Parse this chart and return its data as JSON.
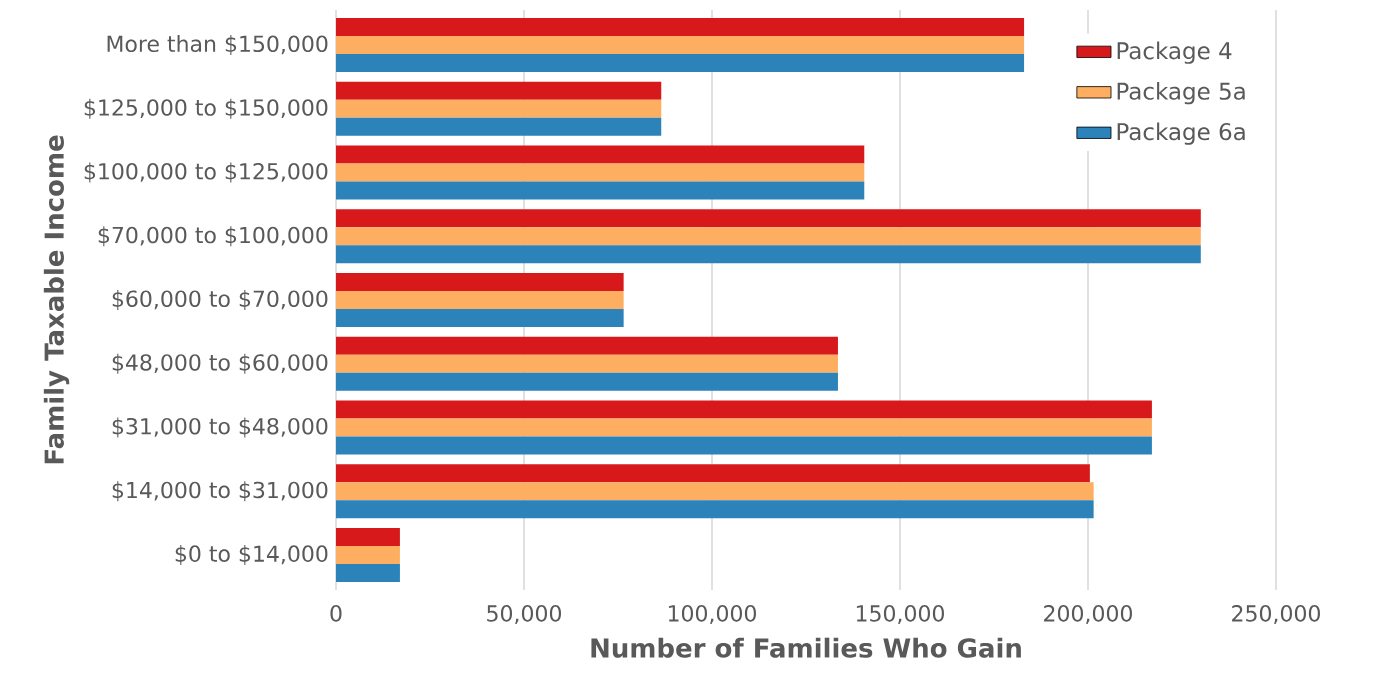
{
  "chart_data": {
    "type": "bar",
    "orientation": "horizontal",
    "xlabel": "Number of Families Who Gain",
    "ylabel": "Family Taxable Income",
    "categories": [
      "More than $150,000",
      "$125,000 to $150,000",
      "$100,000 to $125,000",
      "$70,000 to $100,000",
      "$60,000 to $70,000",
      "$48,000 to $60,000",
      "$31,000 to $48,000",
      "$14,000 to $31,000",
      "$0 to $14,000"
    ],
    "series": [
      {
        "name": "Package 4",
        "color": "#d7191c",
        "values": [
          183000,
          86500,
          140500,
          230000,
          76500,
          133500,
          217000,
          200500,
          17000
        ]
      },
      {
        "name": "Package 5a",
        "color": "#fdae61",
        "values": [
          183000,
          86500,
          140500,
          230000,
          76500,
          133500,
          217000,
          201500,
          17000
        ]
      },
      {
        "name": "Package 6a",
        "color": "#2b83ba",
        "values": [
          183000,
          86500,
          140500,
          230000,
          76500,
          133500,
          217000,
          201500,
          17000
        ]
      }
    ],
    "xlim": [
      0,
      250000
    ],
    "xticks": [
      0,
      {
        "value": 50000,
        "label": "50,000"
      },
      {
        "value": 100000,
        "label": "100,000"
      },
      {
        "value": 150000,
        "label": "150,000"
      },
      {
        "value": 200000,
        "label": "200,000"
      },
      {
        "value": 250000,
        "label": "250,000"
      }
    ],
    "grid": "x",
    "legend": "top right"
  }
}
